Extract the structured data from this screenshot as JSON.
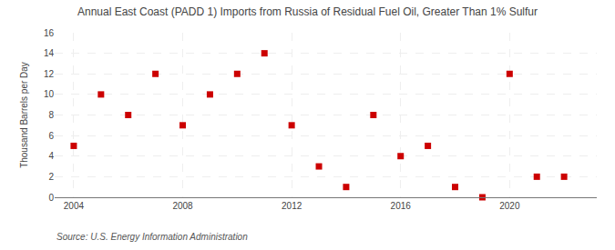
{
  "chart_data": {
    "type": "scatter",
    "title": "Annual East Coast (PADD 1) Imports from Russia of Residual Fuel Oil, Greater Than 1% Sulfur",
    "ylabel": "Thousand Barrels per Day",
    "annotations": [
      "Source: U.S. Energy Information Administration"
    ],
    "x": [
      2004,
      2005,
      2006,
      2007,
      2008,
      2009,
      2010,
      2011,
      2012,
      2013,
      2014,
      2015,
      2016,
      2017,
      2018,
      2019,
      2020,
      2021,
      2022
    ],
    "values": [
      5,
      10,
      8,
      12,
      7,
      10,
      12,
      14,
      7,
      3,
      1,
      8,
      4,
      5,
      1,
      0,
      12,
      2,
      2
    ],
    "color": "#cc0000",
    "marker": "square",
    "xlim": [
      2003.3,
      2023.2
    ],
    "ylim": [
      0,
      16
    ],
    "xticks": [
      2004,
      2008,
      2012,
      2016,
      2020
    ],
    "yticks": [
      0,
      2,
      4,
      6,
      8,
      10,
      12,
      14,
      16
    ],
    "grid": true
  }
}
